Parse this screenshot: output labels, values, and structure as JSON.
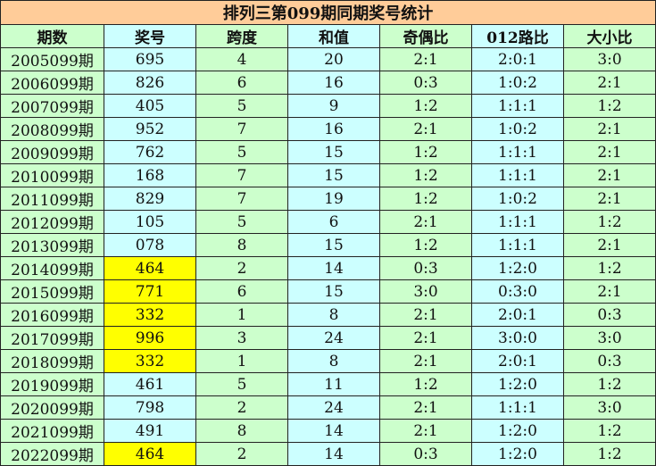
{
  "title": "排列三第099期同期奖号统计",
  "colors": {
    "title_bg": "#ffcc99",
    "green": "#ccffcc",
    "cyan": "#ccffff",
    "highlight": "#ffff00"
  },
  "headers": [
    "期数",
    "奖号",
    "跨度",
    "和值",
    "奇偶比",
    "012路比",
    "大小比"
  ],
  "rows": [
    {
      "period": "2005099期",
      "number": "695",
      "span": "4",
      "sum": "20",
      "odd_even": "2:1",
      "road": "2:0:1",
      "big_small": "3:0",
      "highlight": false
    },
    {
      "period": "2006099期",
      "number": "826",
      "span": "6",
      "sum": "16",
      "odd_even": "0:3",
      "road": "1:0:2",
      "big_small": "2:1",
      "highlight": false
    },
    {
      "period": "2007099期",
      "number": "405",
      "span": "5",
      "sum": "9",
      "odd_even": "1:2",
      "road": "1:1:1",
      "big_small": "1:2",
      "highlight": false
    },
    {
      "period": "2008099期",
      "number": "952",
      "span": "7",
      "sum": "16",
      "odd_even": "2:1",
      "road": "1:0:2",
      "big_small": "2:1",
      "highlight": false
    },
    {
      "period": "2009099期",
      "number": "762",
      "span": "5",
      "sum": "15",
      "odd_even": "1:2",
      "road": "1:1:1",
      "big_small": "2:1",
      "highlight": false
    },
    {
      "period": "2010099期",
      "number": "168",
      "span": "7",
      "sum": "15",
      "odd_even": "1:2",
      "road": "1:1:1",
      "big_small": "2:1",
      "highlight": false
    },
    {
      "period": "2011099期",
      "number": "829",
      "span": "7",
      "sum": "19",
      "odd_even": "1:2",
      "road": "1:0:2",
      "big_small": "2:1",
      "highlight": false
    },
    {
      "period": "2012099期",
      "number": "105",
      "span": "5",
      "sum": "6",
      "odd_even": "2:1",
      "road": "1:1:1",
      "big_small": "1:2",
      "highlight": false
    },
    {
      "period": "2013099期",
      "number": "078",
      "span": "8",
      "sum": "15",
      "odd_even": "1:2",
      "road": "1:1:1",
      "big_small": "2:1",
      "highlight": false
    },
    {
      "period": "2014099期",
      "number": "464",
      "span": "2",
      "sum": "14",
      "odd_even": "0:3",
      "road": "1:2:0",
      "big_small": "1:2",
      "highlight": true
    },
    {
      "period": "2015099期",
      "number": "771",
      "span": "6",
      "sum": "15",
      "odd_even": "3:0",
      "road": "0:3:0",
      "big_small": "2:1",
      "highlight": true
    },
    {
      "period": "2016099期",
      "number": "332",
      "span": "1",
      "sum": "8",
      "odd_even": "2:1",
      "road": "2:0:1",
      "big_small": "0:3",
      "highlight": true
    },
    {
      "period": "2017099期",
      "number": "996",
      "span": "3",
      "sum": "24",
      "odd_even": "2:1",
      "road": "3:0:0",
      "big_small": "3:0",
      "highlight": true
    },
    {
      "period": "2018099期",
      "number": "332",
      "span": "1",
      "sum": "8",
      "odd_even": "2:1",
      "road": "2:0:1",
      "big_small": "0:3",
      "highlight": true
    },
    {
      "period": "2019099期",
      "number": "461",
      "span": "5",
      "sum": "11",
      "odd_even": "1:2",
      "road": "1:2:0",
      "big_small": "1:2",
      "highlight": false
    },
    {
      "period": "2020099期",
      "number": "798",
      "span": "2",
      "sum": "24",
      "odd_even": "2:1",
      "road": "1:1:1",
      "big_small": "3:0",
      "highlight": false
    },
    {
      "period": "2021099期",
      "number": "491",
      "span": "8",
      "sum": "14",
      "odd_even": "2:1",
      "road": "1:2:0",
      "big_small": "1:2",
      "highlight": false
    },
    {
      "period": "2022099期",
      "number": "464",
      "span": "2",
      "sum": "14",
      "odd_even": "0:3",
      "road": "1:2:0",
      "big_small": "1:2",
      "highlight": true
    }
  ]
}
